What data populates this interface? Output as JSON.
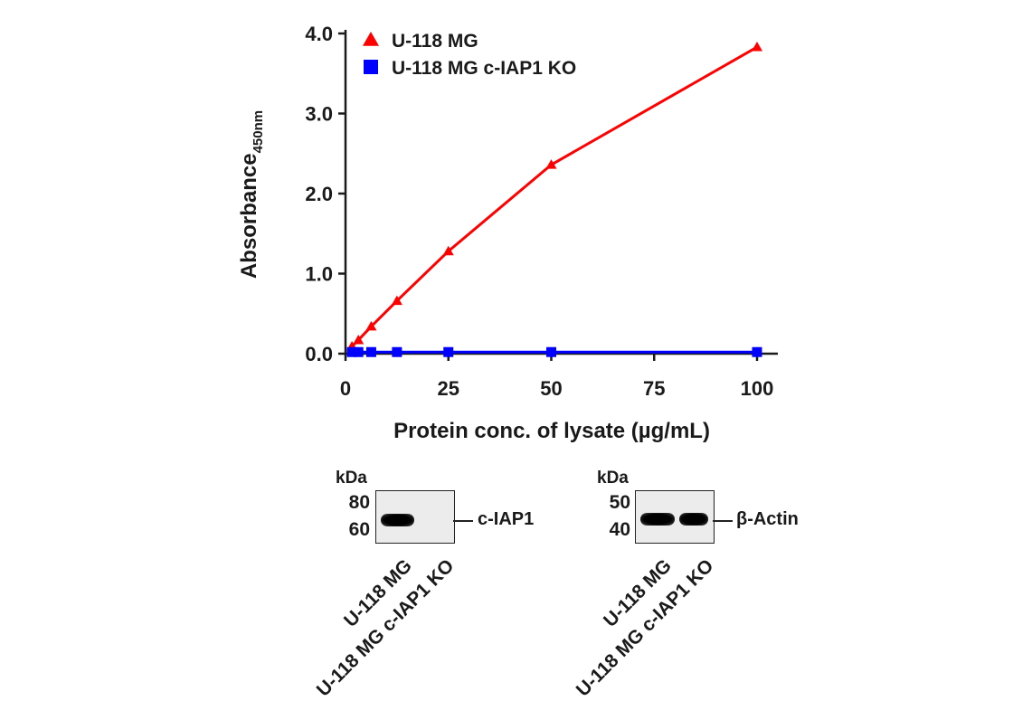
{
  "chart_data": {
    "type": "line",
    "xlabel": "Protein conc. of lysate (µg/mL)",
    "ylabel": "Absorbance",
    "ylabel_subscript": "450nm",
    "xlim": [
      0,
      100
    ],
    "ylim": [
      0,
      4.0
    ],
    "x_ticks": [
      "0",
      "25",
      "50",
      "75",
      "100"
    ],
    "y_ticks": [
      "0.0",
      "1.0",
      "2.0",
      "3.0",
      "4.0"
    ],
    "legend_position": "top-left",
    "series": [
      {
        "name": "U-118 MG",
        "color": "#ff0000",
        "marker": "triangle",
        "x": [
          1.56,
          3.13,
          6.25,
          12.5,
          25,
          50,
          100
        ],
        "y": [
          0.09,
          0.17,
          0.34,
          0.66,
          1.28,
          2.36,
          3.83
        ]
      },
      {
        "name": "U-118 MG c-IAP1 KO",
        "color": "#0000ff",
        "marker": "square",
        "x": [
          1.56,
          3.13,
          6.25,
          12.5,
          25,
          50,
          100
        ],
        "y": [
          0.02,
          0.02,
          0.02,
          0.02,
          0.02,
          0.02,
          0.02
        ]
      }
    ]
  },
  "blots": [
    {
      "kda_label": "kDa",
      "markers": [
        "80",
        "60"
      ],
      "target": "c-IAP1",
      "lanes": [
        "U-118 MG",
        "U-118 MG c-IAP1 KO"
      ]
    },
    {
      "kda_label": "kDa",
      "markers": [
        "50",
        "40"
      ],
      "target": "β-Actin",
      "lanes": [
        "U-118 MG",
        "U-118 MG c-IAP1 KO"
      ]
    }
  ]
}
